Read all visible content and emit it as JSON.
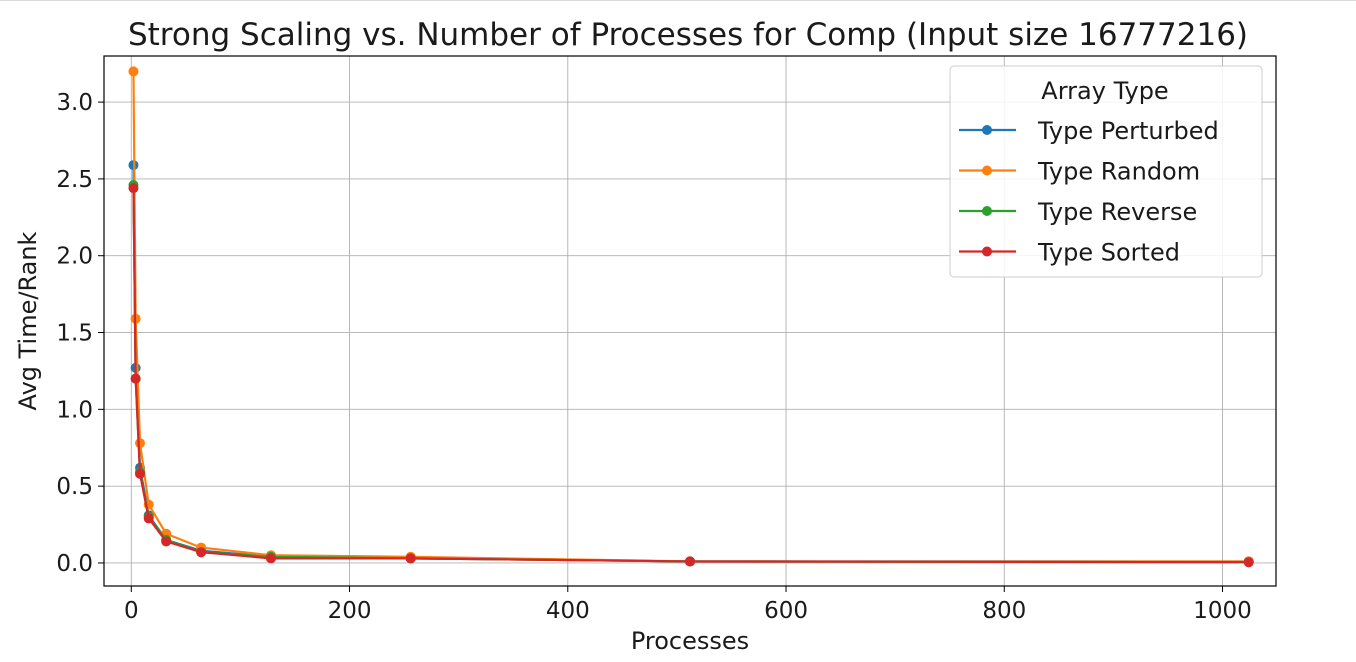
{
  "chart_data": {
    "type": "line",
    "title": "Strong Scaling vs. Number of Processes for Comp (Input size 16777216)",
    "xlabel": "Processes",
    "ylabel": "Avg Time/Rank",
    "xlim": [
      -25,
      1049
    ],
    "ylim": [
      -0.15,
      3.3
    ],
    "x_ticks": [
      0,
      200,
      400,
      600,
      800,
      1000
    ],
    "y_ticks": [
      0.0,
      0.5,
      1.0,
      1.5,
      2.0,
      2.5,
      3.0
    ],
    "x_tick_labels": [
      "0",
      "200",
      "400",
      "600",
      "800",
      "1000"
    ],
    "y_tick_labels": [
      "0.0",
      "0.5",
      "1.0",
      "1.5",
      "2.0",
      "2.5",
      "3.0"
    ],
    "grid": true,
    "legend_title": "Array Type",
    "legend_position": "top-right",
    "x": [
      2,
      4,
      8,
      16,
      32,
      64,
      128,
      256,
      512,
      1024
    ],
    "series": [
      {
        "name": "Type Perturbed",
        "color": "#1f77b4",
        "values": [
          2.59,
          1.27,
          0.62,
          0.31,
          0.15,
          0.08,
          0.04,
          0.03,
          0.01,
          0.01
        ]
      },
      {
        "name": "Type Random",
        "color": "#ff7f0e",
        "values": [
          3.2,
          1.59,
          0.78,
          0.38,
          0.19,
          0.1,
          0.05,
          0.04,
          0.01,
          0.01
        ]
      },
      {
        "name": "Type Reverse",
        "color": "#2ca02c",
        "values": [
          2.46,
          1.2,
          0.59,
          0.3,
          0.15,
          0.07,
          0.04,
          0.03,
          0.01,
          0.005
        ]
      },
      {
        "name": "Type Sorted",
        "color": "#d62728",
        "values": [
          2.44,
          1.2,
          0.58,
          0.29,
          0.14,
          0.07,
          0.03,
          0.03,
          0.01,
          0.005
        ]
      }
    ]
  }
}
